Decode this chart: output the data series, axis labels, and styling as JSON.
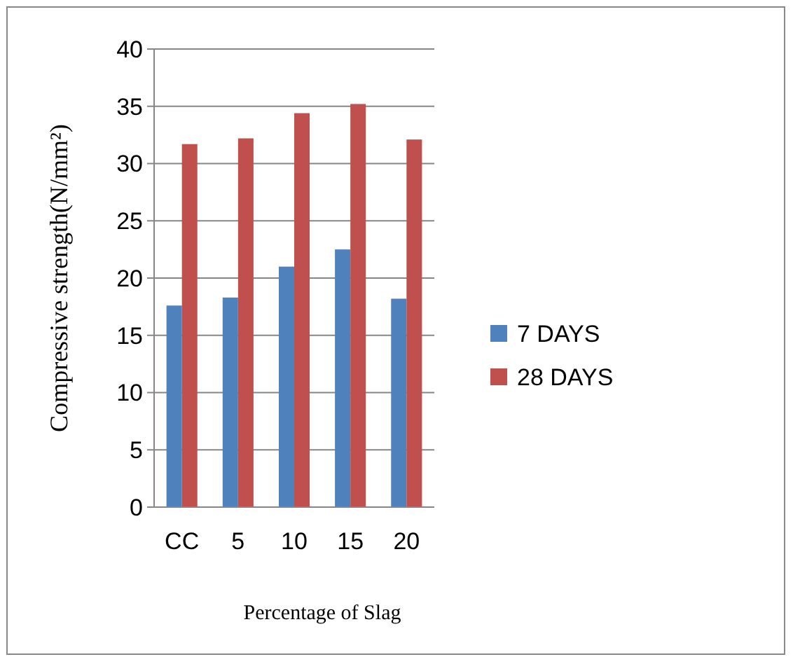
{
  "chart_data": {
    "type": "bar",
    "xlabel": "Percentage of Slag",
    "ylabel": "Compressive strength(N/mm²)",
    "categories": [
      "CC",
      "5",
      "10",
      "15",
      "20"
    ],
    "series": [
      {
        "name": "7 DAYS",
        "color": "#4f81bd",
        "values": [
          17.6,
          18.3,
          21,
          22.5,
          18.2
        ]
      },
      {
        "name": "28 DAYS",
        "color": "#c0504d",
        "values": [
          31.7,
          32.2,
          34.4,
          35.2,
          32.1
        ]
      }
    ],
    "ylim": [
      0,
      40
    ],
    "yticks": [
      0,
      5,
      10,
      15,
      20,
      25,
      30,
      35,
      40
    ],
    "grid": "y",
    "legend": "right"
  }
}
